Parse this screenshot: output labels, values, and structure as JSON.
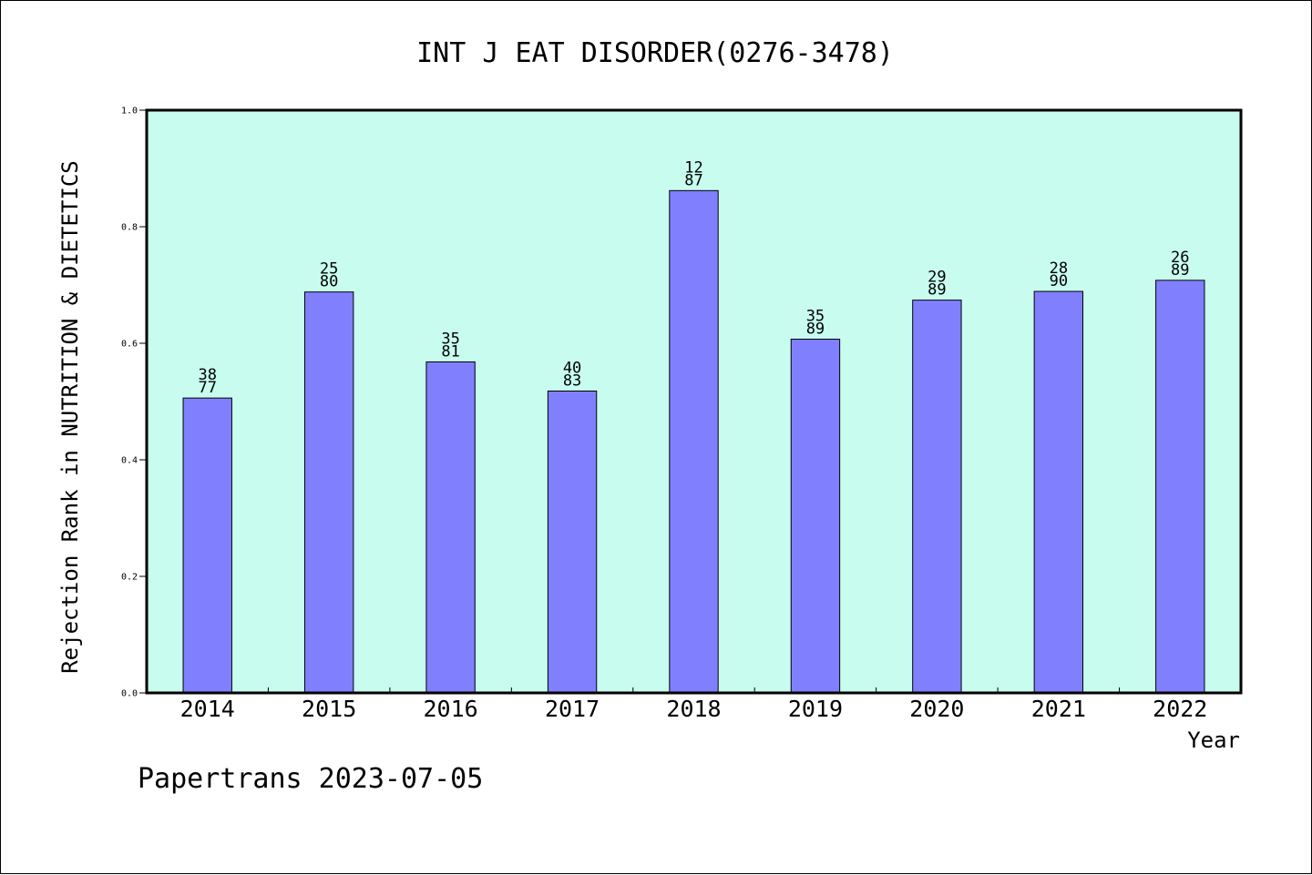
{
  "chart_data": {
    "type": "bar",
    "title": "INT J EAT DISORDER(0276-3478)",
    "xlabel": "Year",
    "ylabel": "Rejection Rank in NUTRITION & DIETETICS",
    "ylim": [
      0.0,
      1.0
    ],
    "yticks": [
      "0.0",
      "0.2",
      "0.4",
      "0.6",
      "0.8",
      "1.0"
    ],
    "grid": false,
    "categories": [
      "2014",
      "2015",
      "2016",
      "2017",
      "2018",
      "2019",
      "2020",
      "2021",
      "2022"
    ],
    "values": [
      0.506,
      0.688,
      0.568,
      0.518,
      0.862,
      0.607,
      0.674,
      0.689,
      0.708
    ],
    "label_top": [
      "38",
      "25",
      "35",
      "40",
      "12",
      "35",
      "29",
      "28",
      "26"
    ],
    "label_bottom": [
      "77",
      "80",
      "81",
      "83",
      "87",
      "89",
      "89",
      "90",
      "89"
    ],
    "colors": {
      "plot_background": "#c8fcee",
      "bar_fill": "#8080ff",
      "bar_edge": "#000000"
    }
  },
  "footer": {
    "credit": "Papertrans 2023-07-05"
  }
}
